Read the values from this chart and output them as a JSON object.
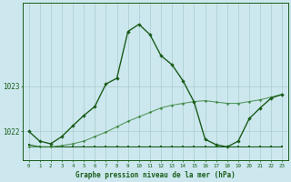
{
  "title": "Graphe pression niveau de la mer (hPa)",
  "background_color": "#cce8ee",
  "grid_color": "#aacccc",
  "line_color_dark": "#1a5c1a",
  "line_color_med": "#2e7d2e",
  "xlim": [
    -0.5,
    23.5
  ],
  "ylim": [
    1021.35,
    1024.85
  ],
  "yticks": [
    1022,
    1023
  ],
  "xticks": [
    0,
    1,
    2,
    3,
    4,
    5,
    6,
    7,
    8,
    9,
    10,
    11,
    12,
    13,
    14,
    15,
    16,
    17,
    18,
    19,
    20,
    21,
    22,
    23
  ],
  "series_flat_x": [
    0,
    1,
    2,
    3,
    4,
    5,
    6,
    7,
    8,
    9,
    10,
    11,
    12,
    13,
    14,
    15,
    16,
    17,
    18,
    19,
    20,
    21,
    22,
    23
  ],
  "series_flat_y": [
    1021.7,
    1021.65,
    1021.65,
    1021.65,
    1021.65,
    1021.65,
    1021.65,
    1021.65,
    1021.65,
    1021.65,
    1021.65,
    1021.65,
    1021.65,
    1021.65,
    1021.65,
    1021.65,
    1021.65,
    1021.65,
    1021.65,
    1021.65,
    1021.65,
    1021.65,
    1021.65,
    1021.65
  ],
  "series_rise_x": [
    0,
    1,
    2,
    3,
    4,
    5,
    6,
    7,
    8,
    9,
    10,
    11,
    12,
    13,
    14,
    15,
    16,
    17,
    18,
    19,
    20,
    21,
    22,
    23
  ],
  "series_rise_y": [
    1021.65,
    1021.65,
    1021.65,
    1021.68,
    1021.72,
    1021.78,
    1021.88,
    1021.98,
    1022.1,
    1022.22,
    1022.32,
    1022.42,
    1022.52,
    1022.58,
    1022.62,
    1022.66,
    1022.68,
    1022.65,
    1022.62,
    1022.62,
    1022.66,
    1022.7,
    1022.76,
    1022.82
  ],
  "series_main_x": [
    0,
    1,
    2,
    3,
    4,
    5,
    6,
    7,
    8,
    9,
    10,
    11,
    12,
    13,
    14,
    15,
    16,
    17,
    18,
    19,
    20,
    21,
    22,
    23
  ],
  "series_main_y": [
    1022.0,
    1021.78,
    1021.72,
    1021.88,
    1022.12,
    1022.35,
    1022.55,
    1023.05,
    1023.18,
    1024.22,
    1024.38,
    1024.15,
    1023.68,
    1023.48,
    1023.12,
    1022.65,
    1021.82,
    1021.7,
    1021.65,
    1021.78,
    1022.28,
    1022.52,
    1022.74,
    1022.82
  ]
}
